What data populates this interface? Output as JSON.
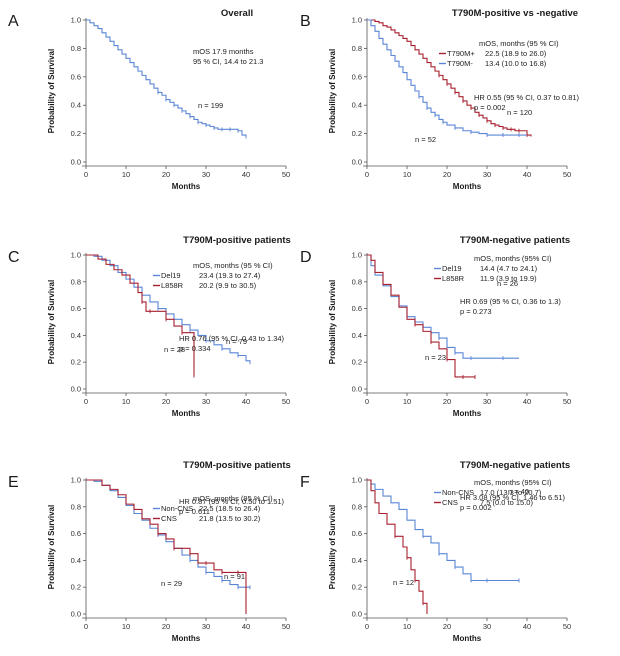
{
  "chart_data": [
    {
      "type": "line",
      "panel_label": "A",
      "title": "Overall",
      "xlabel": "Months",
      "ylabel": "Probability of Survival",
      "xlim": [
        0,
        50
      ],
      "ylim": [
        0,
        1.0
      ],
      "xticks": [
        "0",
        "10",
        "20",
        "30",
        "40",
        "50"
      ],
      "yticks": [
        "0.0",
        "0.2",
        "0.4",
        "0.6",
        "0.8",
        "1.0"
      ],
      "annotations": [
        "mOS 17.9 months",
        "95 % CI, 14.4 to 21.3"
      ],
      "legend": null,
      "series": [
        {
          "name": "Overall",
          "n_label": "n = 199",
          "color": "#5b86d6",
          "x": [
            0,
            1,
            2,
            3,
            4,
            5,
            6,
            7,
            8,
            9,
            10,
            11,
            12,
            13,
            14,
            15,
            16,
            17,
            18,
            19,
            20,
            21,
            22,
            23,
            24,
            25,
            26,
            27,
            28,
            29,
            30,
            31,
            32,
            33,
            34,
            35,
            36,
            37,
            38,
            39,
            40
          ],
          "y": [
            1.0,
            0.98,
            0.96,
            0.94,
            0.91,
            0.88,
            0.85,
            0.82,
            0.79,
            0.76,
            0.73,
            0.7,
            0.67,
            0.64,
            0.61,
            0.58,
            0.55,
            0.52,
            0.49,
            0.47,
            0.44,
            0.42,
            0.4,
            0.38,
            0.36,
            0.34,
            0.32,
            0.3,
            0.28,
            0.27,
            0.26,
            0.25,
            0.24,
            0.23,
            0.23,
            0.23,
            0.23,
            0.23,
            0.22,
            0.19,
            0.18
          ]
        }
      ]
    },
    {
      "type": "line",
      "panel_label": "B",
      "title": "T790M-positive vs -negative",
      "xlabel": "Months",
      "ylabel": "Probability of Survival",
      "xlim": [
        0,
        50
      ],
      "ylim": [
        0,
        1.0
      ],
      "xticks": [
        "0",
        "10",
        "20",
        "30",
        "40",
        "50"
      ],
      "yticks": [
        "0.0",
        "0.2",
        "0.4",
        "0.6",
        "0.8",
        "1.0"
      ],
      "annotations": [
        "HR 0.55 (95 % CI, 0.37 to 0.81)",
        "p = 0.002"
      ],
      "legend": {
        "header": "mOS, months (95 % CI)",
        "items": [
          {
            "name": "T790M+",
            "value": "22.5 (18.9 to 26.0)"
          },
          {
            "name": "T790M-",
            "value": "13.4 (10.0 to 16.8)"
          }
        ]
      },
      "series": [
        {
          "name": "T790M+",
          "n_label": "n = 120",
          "color": "#a8202e",
          "x": [
            0,
            1,
            2,
            3,
            4,
            5,
            6,
            7,
            8,
            9,
            10,
            11,
            12,
            13,
            14,
            15,
            16,
            17,
            18,
            19,
            20,
            21,
            22,
            23,
            24,
            25,
            26,
            27,
            28,
            29,
            30,
            31,
            32,
            33,
            34,
            35,
            36,
            37,
            38,
            39,
            40,
            41
          ],
          "y": [
            1.0,
            1.0,
            0.99,
            0.98,
            0.96,
            0.95,
            0.93,
            0.91,
            0.89,
            0.87,
            0.85,
            0.82,
            0.79,
            0.76,
            0.73,
            0.7,
            0.67,
            0.64,
            0.61,
            0.58,
            0.55,
            0.52,
            0.49,
            0.46,
            0.43,
            0.4,
            0.38,
            0.35,
            0.33,
            0.31,
            0.29,
            0.27,
            0.26,
            0.25,
            0.24,
            0.23,
            0.23,
            0.22,
            0.22,
            0.22,
            0.19,
            0.18
          ]
        },
        {
          "name": "T790M-",
          "n_label": "n = 52",
          "color": "#5b86d6",
          "x": [
            0,
            1,
            2,
            3,
            4,
            5,
            6,
            7,
            8,
            9,
            10,
            11,
            12,
            13,
            14,
            15,
            16,
            17,
            18,
            19,
            20,
            22,
            24,
            26,
            28,
            30,
            32,
            34,
            36,
            38,
            40
          ],
          "y": [
            1.0,
            0.96,
            0.92,
            0.87,
            0.83,
            0.79,
            0.75,
            0.71,
            0.67,
            0.63,
            0.58,
            0.54,
            0.5,
            0.46,
            0.42,
            0.38,
            0.35,
            0.33,
            0.3,
            0.28,
            0.26,
            0.24,
            0.22,
            0.21,
            0.2,
            0.19,
            0.19,
            0.19,
            0.19,
            0.19,
            0.19
          ]
        }
      ]
    },
    {
      "type": "line",
      "panel_label": "C",
      "title": "T790M-positive patients",
      "xlabel": "Months",
      "ylabel": "Probability of Survival",
      "xlim": [
        0,
        50
      ],
      "ylim": [
        0,
        1.0
      ],
      "xticks": [
        "0",
        "10",
        "20",
        "30",
        "40",
        "50"
      ],
      "yticks": [
        "0.0",
        "0.2",
        "0.4",
        "0.6",
        "0.8",
        "1.0"
      ],
      "annotations": [
        "HR 0.76 (95 % CI, 0.43 to 1.34)",
        "p = 0.334"
      ],
      "legend": {
        "header": "mOS, months (95 % CI)",
        "items": [
          {
            "name": "Del19",
            "value": "23.4 (19.3 to 27.4)"
          },
          {
            "name": "L858R",
            "value": "20.2 (9.9 to 30.5)"
          }
        ]
      },
      "series": [
        {
          "name": "Del19",
          "n_label": "n = 79",
          "color": "#5b86d6",
          "x": [
            0,
            2,
            4,
            6,
            8,
            10,
            12,
            14,
            16,
            18,
            20,
            22,
            24,
            26,
            28,
            30,
            32,
            34,
            36,
            38,
            40,
            41
          ],
          "y": [
            1.0,
            0.99,
            0.96,
            0.92,
            0.87,
            0.82,
            0.76,
            0.7,
            0.65,
            0.6,
            0.56,
            0.52,
            0.48,
            0.44,
            0.4,
            0.36,
            0.33,
            0.3,
            0.27,
            0.25,
            0.21,
            0.2
          ]
        },
        {
          "name": "L858R",
          "n_label": "n = 28",
          "color": "#a8202e",
          "x": [
            0,
            3,
            5,
            7,
            9,
            11,
            13,
            14,
            15,
            16,
            18,
            20,
            22,
            24,
            26,
            27
          ],
          "y": [
            1.0,
            0.97,
            0.93,
            0.89,
            0.85,
            0.79,
            0.72,
            0.65,
            0.58,
            0.58,
            0.58,
            0.52,
            0.47,
            0.42,
            0.42,
            0.1
          ]
        }
      ]
    },
    {
      "type": "line",
      "panel_label": "D",
      "title": "T790M-negative patients",
      "xlabel": "Months",
      "ylabel": "Probability of Survival",
      "xlim": [
        0,
        50
      ],
      "ylim": [
        0,
        1.0
      ],
      "xticks": [
        "0",
        "10",
        "20",
        "30",
        "40",
        "50"
      ],
      "yticks": [
        "0.0",
        "0.2",
        "0.4",
        "0.6",
        "0.8",
        "1.0"
      ],
      "annotations": [
        "HR 0.69 (95 % CI, 0.36 to 1.3)",
        "p = 0.273"
      ],
      "legend": {
        "header": "mOS, months (95% CI)",
        "items": [
          {
            "name": "Del19",
            "value": "14.4 (4.7 to 24.1)"
          },
          {
            "name": "L858R",
            "value": "11.9 (3.9 to 19.9)"
          }
        ]
      },
      "series": [
        {
          "name": "Del19",
          "n_label": "n = 26",
          "color": "#5b86d6",
          "x": [
            0,
            1,
            2,
            4,
            6,
            8,
            10,
            12,
            14,
            16,
            18,
            20,
            22,
            24,
            26,
            30,
            34,
            38
          ],
          "y": [
            1.0,
            0.92,
            0.85,
            0.77,
            0.69,
            0.62,
            0.54,
            0.5,
            0.46,
            0.42,
            0.38,
            0.31,
            0.27,
            0.23,
            0.23,
            0.23,
            0.23,
            0.23
          ]
        },
        {
          "name": "L858R",
          "n_label": "n = 23",
          "color": "#a8202e",
          "x": [
            0,
            1,
            2,
            4,
            6,
            8,
            10,
            12,
            14,
            16,
            18,
            20,
            22,
            24,
            26,
            27
          ],
          "y": [
            1.0,
            0.96,
            0.87,
            0.78,
            0.7,
            0.61,
            0.52,
            0.48,
            0.43,
            0.35,
            0.3,
            0.22,
            0.09,
            0.09,
            0.09,
            0.09
          ]
        }
      ]
    },
    {
      "type": "line",
      "panel_label": "E",
      "title": "T790M-positive patients",
      "xlabel": "Months",
      "ylabel": "Probability of Survival",
      "xlim": [
        0,
        50
      ],
      "ylim": [
        0,
        1.0
      ],
      "xticks": [
        "0",
        "10",
        "20",
        "30",
        "40",
        "50"
      ],
      "yticks": [
        "0.0",
        "0.2",
        "0.4",
        "0.6",
        "0.8",
        "1.0"
      ],
      "annotations": [
        "HR 0.87 (95 % CI, 0.50 to 1.51)",
        "p = 0.611"
      ],
      "legend": {
        "header": "mOS, months (95 % CI)",
        "items": [
          {
            "name": "Non-CNS",
            "value": "22.5 (18.5 to 26.4)"
          },
          {
            "name": "CNS",
            "value": "21.8 (13.5 to 30.2)"
          }
        ]
      },
      "series": [
        {
          "name": "Non-CNS",
          "n_label": "n = 91",
          "color": "#5b86d6",
          "x": [
            0,
            2,
            4,
            6,
            8,
            10,
            12,
            14,
            16,
            18,
            20,
            22,
            24,
            26,
            28,
            30,
            32,
            34,
            36,
            38,
            40,
            41
          ],
          "y": [
            1.0,
            0.99,
            0.96,
            0.92,
            0.87,
            0.81,
            0.75,
            0.7,
            0.64,
            0.59,
            0.54,
            0.49,
            0.44,
            0.4,
            0.35,
            0.31,
            0.28,
            0.25,
            0.22,
            0.2,
            0.2,
            0.2
          ]
        },
        {
          "name": "CNS",
          "n_label": "n = 29",
          "color": "#a8202e",
          "x": [
            0,
            2,
            4,
            6,
            8,
            10,
            12,
            14,
            16,
            18,
            20,
            22,
            24,
            26,
            28,
            30,
            32,
            34,
            36,
            38,
            40
          ],
          "y": [
            1.0,
            1.0,
            0.96,
            0.93,
            0.89,
            0.82,
            0.78,
            0.71,
            0.67,
            0.6,
            0.56,
            0.49,
            0.49,
            0.45,
            0.38,
            0.38,
            0.33,
            0.31,
            0.31,
            0.31,
            0.0
          ]
        }
      ]
    },
    {
      "type": "line",
      "panel_label": "F",
      "title": "T790M-negative patients",
      "xlabel": "Months",
      "ylabel": "Probability of Survival",
      "xlim": [
        0,
        50
      ],
      "ylim": [
        0,
        1.0
      ],
      "xticks": [
        "0",
        "10",
        "20",
        "30",
        "40",
        "50"
      ],
      "yticks": [
        "0.0",
        "0.2",
        "0.4",
        "0.6",
        "0.8",
        "1.0"
      ],
      "annotations": [
        "HR 3.08 (95 % CI, 1.46 to 6.51)",
        "p = 0.002"
      ],
      "legend": {
        "header": "mOS, months (95% CI)",
        "items": [
          {
            "name": "Non-CNS",
            "value": "17.0 (13.3 to 20.7)"
          },
          {
            "name": "CNS",
            "value": "7.5 (0.0 to 15.0)"
          }
        ]
      },
      "series": [
        {
          "name": "Non-CNS",
          "n_label": "n = 40",
          "color": "#5b86d6",
          "x": [
            0,
            1,
            2,
            4,
            6,
            8,
            10,
            12,
            14,
            16,
            18,
            20,
            22,
            24,
            26,
            28,
            30,
            34,
            38
          ],
          "y": [
            1.0,
            0.97,
            0.93,
            0.88,
            0.83,
            0.78,
            0.7,
            0.63,
            0.58,
            0.53,
            0.45,
            0.4,
            0.35,
            0.3,
            0.25,
            0.25,
            0.25,
            0.25,
            0.25
          ]
        },
        {
          "name": "CNS",
          "n_label": "n = 12",
          "color": "#a8202e",
          "x": [
            0,
            1,
            2,
            3,
            5,
            7,
            9,
            10,
            11,
            12,
            13,
            14,
            15
          ],
          "y": [
            1.0,
            0.92,
            0.83,
            0.75,
            0.67,
            0.58,
            0.5,
            0.42,
            0.33,
            0.25,
            0.17,
            0.08,
            0.0
          ]
        }
      ]
    }
  ]
}
